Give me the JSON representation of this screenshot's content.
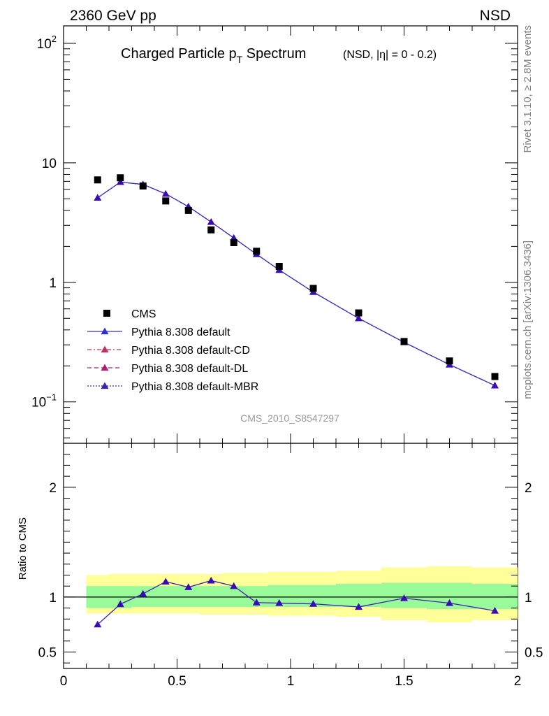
{
  "header": {
    "left": "2360 GeV pp",
    "right": "NSD",
    "side_top": "Rivet 3.1.10, ≥ 2.8M events",
    "side_bottom": "mcplots.cern.ch [arXiv:1306.3436]"
  },
  "title": {
    "main_pre": "Charged Particle p",
    "main_sub": "T",
    "main_post": " Spectrum",
    "detail": "(NSD, |η| =   0 - 0.2)"
  },
  "watermark": "CMS_2010_S8547297",
  "ratio_ylabel": "Ratio to CMS",
  "colors": {
    "data": "#000000",
    "pythia_default": "#3030d0",
    "pythia_cd": "#c03060",
    "pythia_dl": "#b02070",
    "pythia_mbr": "#4020b0",
    "marker": "#3a0ab4",
    "band_inner": "#99fa99",
    "band_outer": "#ffff99"
  },
  "chart_data": [
    {
      "type": "scatter",
      "title": "Charged Particle pT Spectrum (NSD, |η| = 0 - 0.2)",
      "xlim": [
        0,
        2
      ],
      "ylim": [
        0.045,
        140
      ],
      "yscale": "log",
      "xticks": [
        {
          "label": "0",
          "value": 0
        },
        {
          "label": "0.5",
          "value": 0.5
        },
        {
          "label": "1",
          "value": 1
        },
        {
          "label": "1.5",
          "value": 1.5
        },
        {
          "label": "2",
          "value": 2
        }
      ],
      "yticks": [
        {
          "base": "10",
          "exp": "2",
          "value": 100
        },
        {
          "base": "10",
          "exp": "",
          "value": 10
        },
        {
          "base": "1",
          "exp": "",
          "value": 1
        },
        {
          "base": "10",
          "exp": "−1",
          "value": 0.1
        }
      ],
      "legend_position": "bottom-left",
      "x": [
        0.15,
        0.25,
        0.35,
        0.45,
        0.55,
        0.65,
        0.75,
        0.85,
        0.95,
        1.1,
        1.3,
        1.5,
        1.7,
        1.9
      ],
      "series": [
        {
          "name": "CMS",
          "style": "data",
          "values": [
            7.2,
            7.5,
            6.4,
            4.8,
            4.0,
            2.75,
            2.15,
            1.82,
            1.36,
            0.89,
            0.555,
            0.32,
            0.22,
            0.163
          ]
        },
        {
          "name": "Pythia 8.308 default",
          "style": "solid",
          "values": [
            5.1,
            6.9,
            6.6,
            5.5,
            4.3,
            3.2,
            2.35,
            1.72,
            1.27,
            0.83,
            0.5,
            0.315,
            0.205,
            0.137
          ]
        },
        {
          "name": "Pythia 8.308 default-CD",
          "style": "dashdot",
          "values": [
            5.1,
            6.9,
            6.6,
            5.5,
            4.3,
            3.2,
            2.35,
            1.72,
            1.27,
            0.83,
            0.5,
            0.315,
            0.205,
            0.137
          ]
        },
        {
          "name": "Pythia 8.308 default-DL",
          "style": "dashed",
          "values": [
            5.1,
            6.9,
            6.6,
            5.5,
            4.3,
            3.2,
            2.35,
            1.72,
            1.27,
            0.83,
            0.5,
            0.315,
            0.205,
            0.137
          ]
        },
        {
          "name": "Pythia 8.308 default-MBR",
          "style": "dotted",
          "values": [
            5.1,
            6.9,
            6.6,
            5.5,
            4.3,
            3.2,
            2.35,
            1.72,
            1.27,
            0.83,
            0.5,
            0.315,
            0.205,
            0.137
          ]
        }
      ]
    },
    {
      "type": "line",
      "ylabel": "Ratio to CMS",
      "xlim": [
        0,
        2
      ],
      "ylim": [
        0.35,
        2.4
      ],
      "xticks": [
        {
          "label": "0",
          "value": 0
        },
        {
          "label": "0.5",
          "value": 0.5
        },
        {
          "label": "1",
          "value": 1
        },
        {
          "label": "1.5",
          "value": 1.5
        },
        {
          "label": "2",
          "value": 2
        }
      ],
      "yticks": [
        {
          "label": "0.5",
          "value": 0.5
        },
        {
          "label": "1",
          "value": 1
        },
        {
          "label": "2",
          "value": 2
        }
      ],
      "reference_line": 1,
      "bands": {
        "x_edges": [
          0.1,
          0.2,
          0.3,
          0.4,
          0.5,
          0.6,
          0.7,
          0.8,
          0.9,
          1.0,
          1.2,
          1.4,
          1.6,
          1.8,
          2.0
        ],
        "inner_lo": [
          0.9,
          0.9,
          0.91,
          0.91,
          0.91,
          0.91,
          0.91,
          0.91,
          0.91,
          0.91,
          0.91,
          0.9,
          0.89,
          0.89
        ],
        "inner_hi": [
          1.1,
          1.1,
          1.1,
          1.1,
          1.1,
          1.1,
          1.1,
          1.1,
          1.11,
          1.11,
          1.12,
          1.13,
          1.13,
          1.12
        ],
        "outer_lo": [
          0.85,
          0.85,
          0.85,
          0.85,
          0.85,
          0.84,
          0.84,
          0.84,
          0.83,
          0.83,
          0.82,
          0.79,
          0.77,
          0.79
        ],
        "outer_hi": [
          1.2,
          1.21,
          1.21,
          1.21,
          1.21,
          1.21,
          1.22,
          1.22,
          1.23,
          1.23,
          1.24,
          1.27,
          1.28,
          1.27
        ]
      },
      "x": [
        0.15,
        0.25,
        0.35,
        0.45,
        0.55,
        0.65,
        0.75,
        0.85,
        0.95,
        1.1,
        1.3,
        1.5,
        1.7,
        1.9
      ],
      "values": [
        0.75,
        0.935,
        1.03,
        1.14,
        1.09,
        1.15,
        1.1,
        0.95,
        0.945,
        0.938,
        0.91,
        0.99,
        0.945,
        0.875
      ]
    }
  ]
}
